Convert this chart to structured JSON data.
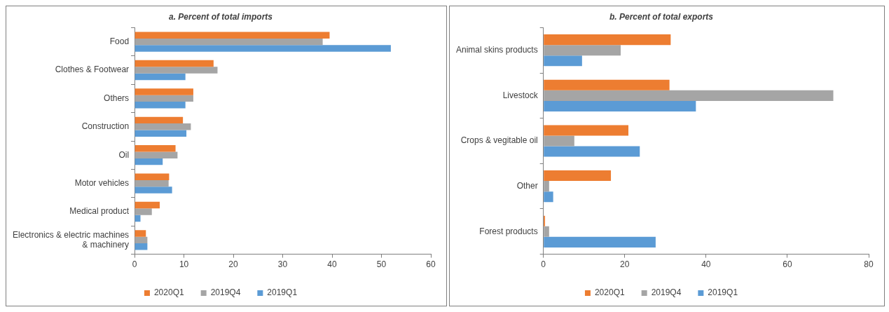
{
  "chart_data": [
    {
      "type": "bar",
      "orientation": "horizontal",
      "title": "a. Percent of total imports",
      "categories": [
        "Food",
        "Clothes & Footwear",
        "Others",
        "Construction",
        "Oil",
        "Motor vehicles",
        "Medical product",
        "Electronics & electric machines & machinery"
      ],
      "series": [
        {
          "name": "2020Q1",
          "color": "#ed7d31",
          "values": [
            39.5,
            16,
            11.9,
            9.8,
            8.3,
            7,
            5.1,
            2.3
          ]
        },
        {
          "name": "2019Q4",
          "color": "#a5a5a5",
          "values": [
            38.1,
            16.8,
            11.9,
            11.4,
            8.7,
            6.9,
            3.5,
            2.6
          ]
        },
        {
          "name": "2019Q1",
          "color": "#5b9bd5",
          "values": [
            51.9,
            10.3,
            10.3,
            10.5,
            5.7,
            7.6,
            1.2,
            2.6
          ]
        }
      ],
      "xlim": [
        0,
        60
      ],
      "xticks": [
        0,
        10,
        20,
        30,
        40,
        50,
        60
      ],
      "grid": false,
      "legend": "bottom"
    },
    {
      "type": "bar",
      "orientation": "horizontal",
      "title": "b. Percent of total exports",
      "categories": [
        "Animal skins products",
        "Livestock",
        "Crops & vegitable oil",
        "Other",
        "Forest products"
      ],
      "series": [
        {
          "name": "2020Q1",
          "color": "#ed7d31",
          "values": [
            31.3,
            31,
            20.9,
            16.6,
            0.4
          ]
        },
        {
          "name": "2019Q4",
          "color": "#a5a5a5",
          "values": [
            19,
            71.3,
            7.6,
            1.4,
            1.4
          ]
        },
        {
          "name": "2019Q1",
          "color": "#5b9bd5",
          "values": [
            9.5,
            37.5,
            23.7,
            2.4,
            27.6
          ]
        }
      ],
      "xlim": [
        0,
        80
      ],
      "xticks": [
        0,
        20,
        40,
        60,
        80
      ],
      "grid": false,
      "legend": "bottom"
    }
  ]
}
